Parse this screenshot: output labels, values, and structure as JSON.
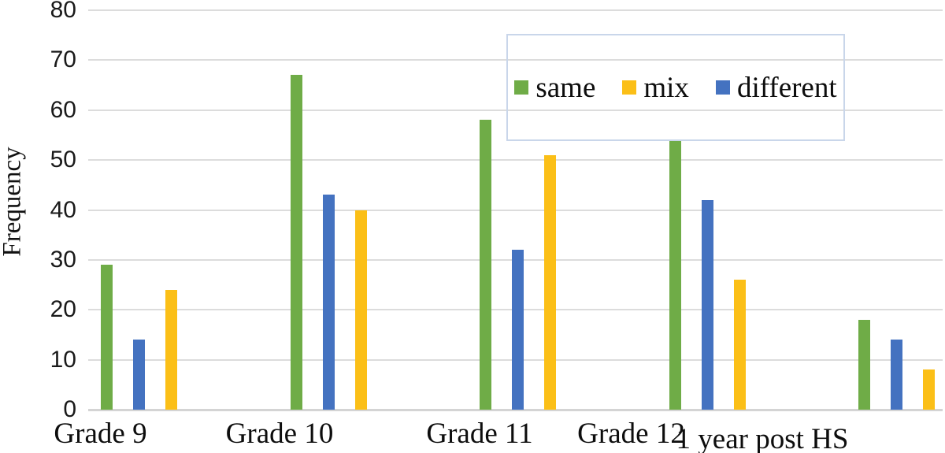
{
  "chart_data": {
    "type": "bar",
    "title": "",
    "xlabel": "",
    "ylabel": "Frequency",
    "categories": [
      "Grade 9",
      "Grade 10",
      "Grade 11",
      "Grade 12",
      "1 year post HS"
    ],
    "series": [
      {
        "name": "same",
        "color": "#6FAC47",
        "values": [
          29,
          67,
          58,
          54,
          18
        ]
      },
      {
        "name": "different",
        "color": "#4472C0",
        "values": [
          14,
          43,
          32,
          42,
          14
        ]
      },
      {
        "name": "mix",
        "color": "#FBBF17",
        "values": [
          24,
          40,
          51,
          26,
          8
        ]
      }
    ],
    "legend": {
      "entries": [
        "same",
        "mix",
        "different"
      ],
      "position": "top-right",
      "border_color": "#c9d6ea"
    },
    "y_ticks": [
      0,
      10,
      20,
      30,
      40,
      50,
      60,
      70,
      80
    ],
    "ylim": [
      0,
      80
    ],
    "grid": true,
    "gridline_color": "#dcdcdc",
    "bar_cluster_order": [
      "same",
      "different",
      "mix"
    ]
  }
}
